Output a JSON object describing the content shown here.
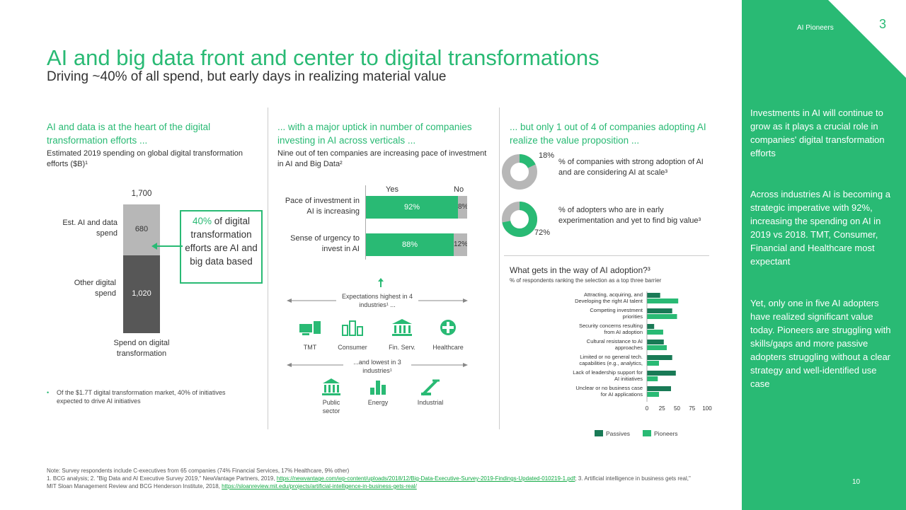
{
  "header": {
    "title": "AI and big data front and center to digital transformations",
    "subtitle": "Driving ~40% of all spend, but early days in realizing material value"
  },
  "col1": {
    "heading": "AI and data is at the heart of the digital transformation efforts ...",
    "subheading": "Estimated 2019 spending on global digital transformation efforts ($B)¹",
    "total_label": "1,700",
    "seg_ai_label": "Est. AI and data spend",
    "seg_ai_value": "680",
    "seg_other_label": "Other digital spend",
    "seg_other_value": "1,020",
    "x_label": "Spend on digital transformation",
    "callout_pct": "40%",
    "callout_text": " of digital transformation efforts are AI and big data based",
    "note": "Of the $1.7T digital transformation market, 40% of initiatives expected to drive AI initiatives"
  },
  "col2": {
    "heading": "... with a major uptick in number of companies investing in AI across verticals ...",
    "subheading": "Nine out of ten companies are increasing pace of investment in AI and Big Data²",
    "yes_label": "Yes",
    "no_label": "No",
    "rows": [
      {
        "label": "Pace of investment in AI is increasing",
        "yes": "92%",
        "no": "8%"
      },
      {
        "label": "Sense of urgency to invest in AI",
        "yes": "88%",
        "no": "12%"
      }
    ],
    "highest_label": "Expectations highest in 4 industries¹ ...",
    "highest_industries": [
      "TMT",
      "Consumer",
      "Fin. Serv.",
      "Healthcare"
    ],
    "lowest_label": "...and lowest in 3 industries¹",
    "lowest_industries": [
      "Public sector",
      "Energy",
      "Industrial"
    ]
  },
  "col3": {
    "heading": "... but only 1 out of 4 of companies adopting AI realize the value proposition ...",
    "donut1_pct": "18%",
    "donut1_text": "% of companies with strong adoption of AI and are considering AI at scale³",
    "donut2_pct": "72%",
    "donut2_text": "% of adopters who are in early experimentation and yet to find big value³",
    "barrier_title": "What gets in the way of AI adoption?³",
    "barrier_subtitle": "% of respondents ranking the selection as a top three barrier",
    "legend_passives": "Passives",
    "legend_pioneers": "Pioneers"
  },
  "sidebar": {
    "tag": "AI Pioneers",
    "page_badge": "3",
    "para1": "Investments in AI will continue to grow as it plays a crucial role in companies' digital transformation efforts",
    "para2": "Across industries AI is becoming a strategic imperative with 92%, increasing the spending on AI in 2019 vs 2018. TMT, Consumer, Financial and Healthcare most expectant",
    "para3": "Yet, only one in five AI adopters have realized significant value today. Pioneers are struggling with skills/gaps and more passive adopters struggling without a clear strategy and well-identified use case",
    "page_number": "10"
  },
  "footnote": {
    "line1": "Note: Survey respondents include C-executives from 65 companies (74% Financial Services, 17% Healthcare, 9% other)",
    "line2a": "1. BCG analysis; 2. \"Big Data and AI Executive Survey 2019,\" NewVantage Partners, 2019, ",
    "link1": "https://newvantage.com/wp-content/uploads/2018/12/Big-Data-Executive-Survey-2019-Findings-Updated-010219-1.pdf",
    "line2b": "; 3. Artificial intelligence in business gets real,\" MIT Sloan Management Review and BCG Henderson Institute, 2018, ",
    "link2": "https://sloanreview.mit.edu/projects/artificial-intelligence-in-business-gets-real/"
  },
  "colors": {
    "green": "#29ba74",
    "dark_green": "#197a56",
    "dark_gray": "#575757",
    "light_gray": "#b7b7b7"
  },
  "chart_data": [
    {
      "type": "bar",
      "title": "Estimated 2019 spending on global digital transformation efforts ($B)",
      "categories": [
        "Spend on digital transformation"
      ],
      "series": [
        {
          "name": "Other digital spend",
          "values": [
            1020
          ]
        },
        {
          "name": "Est. AI and data spend",
          "values": [
            680
          ]
        }
      ],
      "stacked": true,
      "total": 1700
    },
    {
      "type": "bar",
      "orientation": "horizontal",
      "categories": [
        "Pace of investment in AI is increasing",
        "Sense of urgency to invest in AI"
      ],
      "series": [
        {
          "name": "Yes",
          "values": [
            92,
            88
          ]
        },
        {
          "name": "No",
          "values": [
            8,
            12
          ]
        }
      ],
      "stacked": true
    },
    {
      "type": "pie",
      "donut": true,
      "values": [
        18,
        72
      ],
      "labels": [
        "% of companies with strong adoption of AI and are considering AI at scale",
        "% of adopters who are in early experimentation and yet to find big value"
      ]
    },
    {
      "type": "bar",
      "orientation": "horizontal",
      "title": "What gets in the way of AI adoption?",
      "categories": [
        "Attracting, acquiring, and Developing the right AI talent",
        "Competing investment priorities",
        "Security concerns resulting from AI adoption",
        "Cultural resistance to AI approaches",
        "Limited or no general tech. capabilities (e.g., analytics, data, IT)",
        "Lack of leadership support for AI initiatives",
        "Unclear or no business case for AI applications"
      ],
      "series": [
        {
          "name": "Passives",
          "values": [
            22,
            42,
            12,
            28,
            42,
            48,
            40
          ]
        },
        {
          "name": "Pioneers",
          "values": [
            52,
            50,
            27,
            33,
            20,
            18,
            20
          ]
        }
      ],
      "xlim": [
        0,
        100
      ],
      "xticks": [
        0,
        25,
        50,
        75,
        100
      ],
      "legend": "bottom"
    }
  ]
}
